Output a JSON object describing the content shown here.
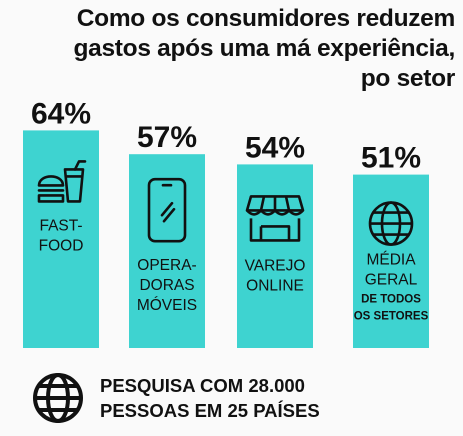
{
  "title": [
    "Como os consumidores reduzem",
    "gastos após uma má experiência,",
    "po setor"
  ],
  "chart_data": {
    "type": "bar",
    "ylim": [
      0,
      100
    ],
    "bar_color": "#3ed3d0",
    "categories": [
      {
        "lines": [
          "FAST-",
          "FOOD"
        ],
        "small_lines": [],
        "icon": "fast-food-icon"
      },
      {
        "lines": [
          "OPERA-",
          "DORAS",
          "MÓVEIS"
        ],
        "small_lines": [],
        "icon": "smartphone-icon"
      },
      {
        "lines": [
          "VAREJO",
          "ONLINE"
        ],
        "small_lines": [],
        "icon": "storefront-icon"
      },
      {
        "lines": [
          "MÉDIA",
          "GERAL"
        ],
        "small_lines": [
          "DE TODOS",
          "OS SETORES"
        ],
        "icon": "globe-icon"
      }
    ],
    "values": [
      64,
      57,
      54,
      51
    ],
    "value_labels": [
      "64%",
      "57%",
      "54%",
      "51%"
    ]
  },
  "footer": {
    "icon": "globe-icon",
    "lines": [
      "PESQUISA COM 28.000",
      "PESSOAS EM 25 PAÍSES"
    ]
  }
}
